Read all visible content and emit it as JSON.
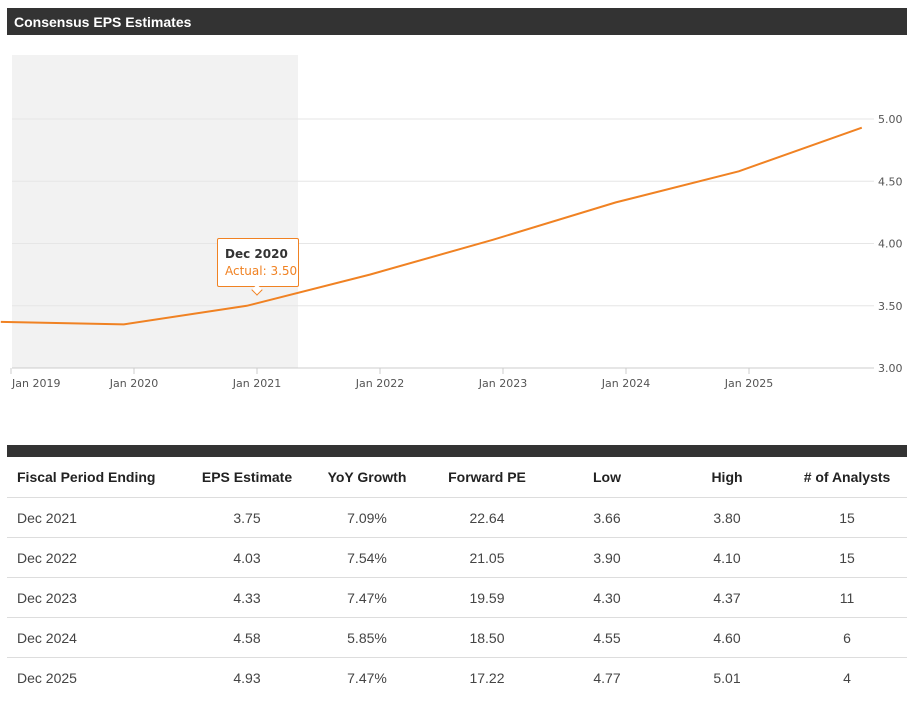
{
  "header": {
    "title": "Consensus EPS Estimates"
  },
  "chart_data": {
    "type": "line",
    "x_tick_labels": [
      "Jan 2019",
      "Jan 2020",
      "Jan 2021",
      "Jan 2022",
      "Jan 2023",
      "Jan 2024",
      "Jan 2025"
    ],
    "y_tick_labels": [
      "5.00",
      "4.50",
      "4.00",
      "3.50",
      "3.00"
    ],
    "ylim": [
      3.0,
      5.0
    ],
    "y_ticks": [
      3.0,
      3.5,
      4.0,
      4.5,
      5.0
    ],
    "y_axis_side": "right",
    "grid": true,
    "shaded_region": {
      "label_context": "actuals",
      "from": "2018-12",
      "to": "2021-05"
    },
    "series": [
      {
        "color": "#f08223",
        "points": [
          {
            "x": "2018-12",
            "y": 3.37
          },
          {
            "x": "2019-12",
            "y": 3.35
          },
          {
            "x": "2020-12",
            "y": 3.5
          },
          {
            "x": "2021-12",
            "y": 3.75
          },
          {
            "x": "2022-12",
            "y": 4.03
          },
          {
            "x": "2023-12",
            "y": 4.33
          },
          {
            "x": "2024-12",
            "y": 4.58
          },
          {
            "x": "2025-12",
            "y": 4.93
          }
        ]
      }
    ],
    "tooltip": {
      "title": "Dec 2020",
      "line": "Actual: 3.50"
    }
  },
  "table": {
    "headers": [
      "Fiscal Period Ending",
      "EPS Estimate",
      "YoY Growth",
      "Forward PE",
      "Low",
      "High",
      "# of Analysts"
    ],
    "rows": [
      [
        "Dec 2021",
        "3.75",
        "7.09%",
        "22.64",
        "3.66",
        "3.80",
        "15"
      ],
      [
        "Dec 2022",
        "4.03",
        "7.54%",
        "21.05",
        "3.90",
        "4.10",
        "15"
      ],
      [
        "Dec 2023",
        "4.33",
        "7.47%",
        "19.59",
        "4.30",
        "4.37",
        "11"
      ],
      [
        "Dec 2024",
        "4.58",
        "5.85%",
        "18.50",
        "4.55",
        "4.60",
        "6"
      ],
      [
        "Dec 2025",
        "4.93",
        "7.47%",
        "17.22",
        "4.77",
        "5.01",
        "4"
      ]
    ]
  },
  "colors": {
    "header_bg": "#333333",
    "line": "#f08223",
    "shade": "#f2f2f2",
    "grid": "#e6e6e6"
  }
}
